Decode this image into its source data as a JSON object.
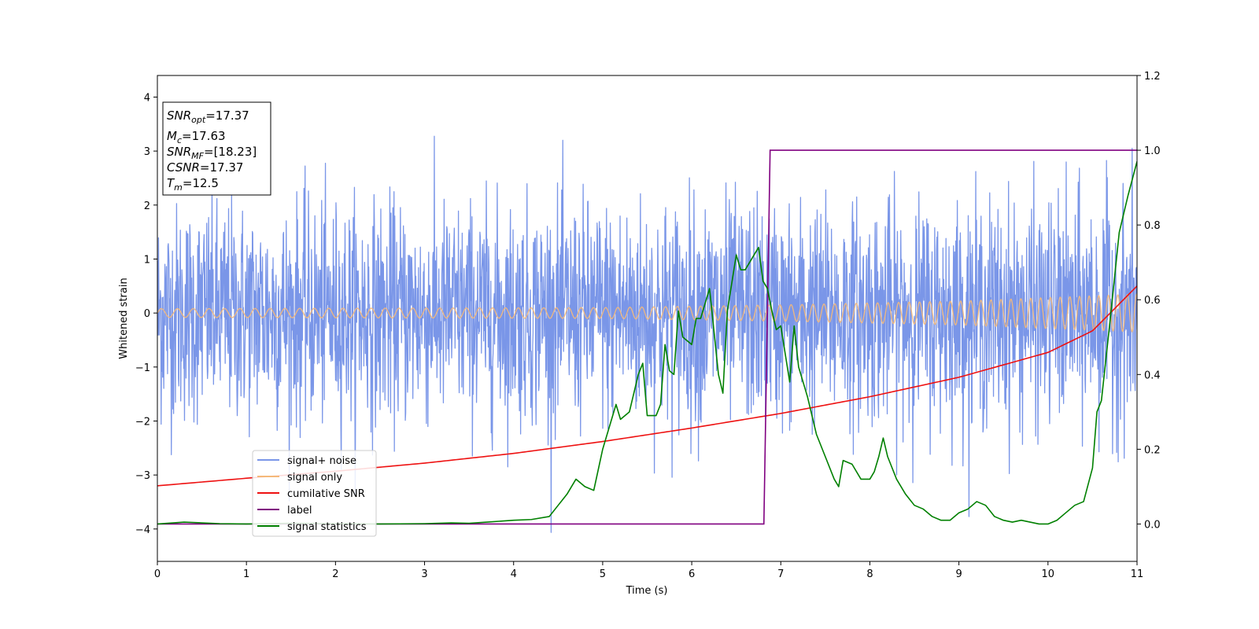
{
  "chart_data": {
    "type": "line",
    "title": "",
    "xlabel": "Time (s)",
    "ylabel": "Whitened strain",
    "xlim": [
      0,
      11
    ],
    "ylim": [
      -4.6,
      4.4
    ],
    "y2lim": [
      -0.1,
      1.2
    ],
    "grid": false,
    "legend_position": "lower-left",
    "x_ticks": [
      "0",
      "1",
      "2",
      "3",
      "4",
      "5",
      "6",
      "7",
      "8",
      "9",
      "10",
      "11"
    ],
    "y_ticks": [
      "−4",
      "−3",
      "−2",
      "−1",
      "0",
      "1",
      "2",
      "3",
      "4"
    ],
    "y2_ticks": [
      "0.0",
      "0.2",
      "0.4",
      "0.6",
      "0.8",
      "1.0",
      "1.2"
    ],
    "annotation": {
      "snr_opt": {
        "base": "SNR",
        "sub": "opt",
        "value": "=17.37"
      },
      "m_c": {
        "base": "M",
        "sub": "c",
        "value": "=17.63"
      },
      "snr_mf": {
        "base": "SNR",
        "sub": "MF",
        "value": "=[18.23]"
      },
      "csnr": {
        "base": "CSNR",
        "value": "=17.37"
      },
      "t_m": {
        "base": "T",
        "sub": "m",
        "value": "=12.5"
      }
    },
    "series": [
      {
        "name": "signal+ noise",
        "color": "#7a96e8",
        "axis": "left",
        "description_only": true,
        "amplitude_envelope": {
          "x": [
            0,
            4,
            6,
            7,
            9,
            11
          ],
          "sd": [
            1.0,
            1.0,
            1.05,
            1.0,
            1.0,
            1.05
          ]
        }
      },
      {
        "name": "signal only",
        "color": "#f5b97a",
        "axis": "left",
        "amplitude": {
          "x": [
            0,
            5,
            7,
            9,
            11
          ],
          "a": [
            0.08,
            0.1,
            0.15,
            0.22,
            0.35
          ]
        }
      },
      {
        "name": "cumilative SNR",
        "color": "#ee1111",
        "axis": "left",
        "x": [
          0,
          1,
          2,
          3,
          4,
          5,
          6,
          7,
          8,
          9,
          10,
          10.5,
          11
        ],
        "y": [
          -3.2,
          -3.06,
          -2.93,
          -2.78,
          -2.6,
          -2.38,
          -2.13,
          -1.86,
          -1.55,
          -1.19,
          -0.73,
          -0.33,
          0.5
        ]
      },
      {
        "name": "label",
        "color": "#800080",
        "axis": "right",
        "x": [
          0,
          6.81,
          6.88,
          11
        ],
        "y": [
          0.0,
          0.0,
          1.0,
          1.0
        ]
      },
      {
        "name": "signal statistics",
        "color": "#008000",
        "axis": "right",
        "x": [
          0,
          0.3,
          0.5,
          0.7,
          1,
          1.5,
          2,
          2.5,
          3,
          3.3,
          3.5,
          3.7,
          4,
          4.2,
          4.4,
          4.5,
          4.6,
          4.7,
          4.8,
          4.9,
          5.0,
          5.1,
          5.15,
          5.2,
          5.3,
          5.4,
          5.45,
          5.5,
          5.6,
          5.65,
          5.7,
          5.75,
          5.8,
          5.85,
          5.9,
          6.0,
          6.05,
          6.1,
          6.2,
          6.3,
          6.35,
          6.4,
          6.5,
          6.55,
          6.6,
          6.7,
          6.75,
          6.8,
          6.85,
          6.9,
          6.95,
          7.0,
          7.1,
          7.15,
          7.2,
          7.3,
          7.4,
          7.5,
          7.6,
          7.65,
          7.7,
          7.8,
          7.9,
          8.0,
          8.05,
          8.1,
          8.15,
          8.2,
          8.3,
          8.4,
          8.5,
          8.6,
          8.7,
          8.8,
          8.9,
          9.0,
          9.1,
          9.2,
          9.3,
          9.4,
          9.5,
          9.6,
          9.7,
          9.8,
          9.9,
          10.0,
          10.1,
          10.2,
          10.3,
          10.4,
          10.5,
          10.55,
          10.6,
          10.7,
          10.8,
          10.9,
          11
        ],
        "y": [
          0.0,
          0.005,
          0.003,
          0.001,
          0.0,
          0.002,
          0.001,
          0.0,
          0.001,
          0.003,
          0.002,
          0.005,
          0.01,
          0.012,
          0.02,
          0.05,
          0.08,
          0.12,
          0.1,
          0.09,
          0.2,
          0.28,
          0.32,
          0.28,
          0.3,
          0.4,
          0.43,
          0.29,
          0.29,
          0.32,
          0.48,
          0.41,
          0.4,
          0.57,
          0.5,
          0.48,
          0.55,
          0.55,
          0.63,
          0.4,
          0.35,
          0.57,
          0.72,
          0.68,
          0.68,
          0.72,
          0.74,
          0.65,
          0.63,
          0.57,
          0.52,
          0.53,
          0.38,
          0.53,
          0.42,
          0.34,
          0.24,
          0.18,
          0.12,
          0.1,
          0.17,
          0.16,
          0.12,
          0.12,
          0.14,
          0.18,
          0.23,
          0.18,
          0.12,
          0.08,
          0.05,
          0.04,
          0.02,
          0.01,
          0.01,
          0.03,
          0.04,
          0.06,
          0.05,
          0.02,
          0.01,
          0.005,
          0.01,
          0.005,
          0.0,
          0.0,
          0.01,
          0.03,
          0.05,
          0.06,
          0.15,
          0.3,
          0.33,
          0.55,
          0.78,
          0.88,
          0.97
        ]
      }
    ]
  }
}
